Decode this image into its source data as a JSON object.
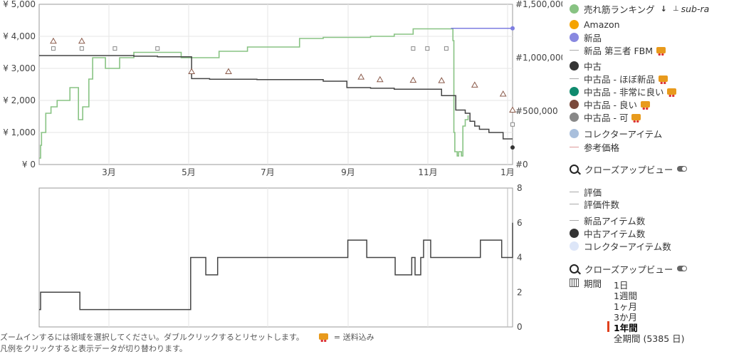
{
  "chart_data": [
    {
      "type": "line",
      "title": "",
      "x_ticks": [
        "3月",
        "5月",
        "7月",
        "9月",
        "11月",
        "1月"
      ],
      "y_left_ticks": [
        "¥ 0",
        "¥ 1,000",
        "¥ 2,000",
        "¥ 3,000",
        "¥ 4,000",
        "¥ 5,000"
      ],
      "y_left_lim": [
        0,
        5000
      ],
      "y_right_ticks": [
        "#0",
        "#500,000",
        "#1,000,000",
        "#1,500,000"
      ],
      "y_right_lim": [
        0,
        1500000
      ],
      "grid": true,
      "series": [
        {
          "name": "売れ筋ランキング",
          "axis": "right",
          "color": "#88c383",
          "points": [
            [
              0,
              60000
            ],
            [
              0.3,
              180000
            ],
            [
              0.5,
              300000
            ],
            [
              1.2,
              300000
            ],
            [
              1.4,
              480000
            ],
            [
              2.3,
              480000
            ],
            [
              2.5,
              540000
            ],
            [
              3.5,
              540000
            ],
            [
              3.8,
              600000
            ],
            [
              5.5,
              600000
            ],
            [
              6.5,
              720000
            ],
            [
              8,
              720000
            ],
            [
              8.3,
              420000
            ],
            [
              9,
              420000
            ],
            [
              9.2,
              540000
            ],
            [
              10,
              540000
            ],
            [
              10.5,
              800000
            ],
            [
              11,
              800000
            ],
            [
              11.3,
              1000000
            ],
            [
              13,
              1000000
            ],
            [
              14,
              900000
            ],
            [
              16,
              900000
            ],
            [
              17,
              1000000
            ],
            [
              18,
              1000000
            ],
            [
              20,
              1050000
            ],
            [
              25,
              1050000
            ],
            [
              30,
              1000000
            ],
            [
              37,
              1000000
            ],
            [
              38,
              1060000
            ],
            [
              42,
              1060000
            ],
            [
              44,
              1100000
            ],
            [
              50,
              1100000
            ],
            [
              55,
              1180000
            ],
            [
              60,
              1190000
            ],
            [
              70,
              1200000
            ],
            [
              75,
              1220000
            ],
            [
              79,
              1270000
            ],
            [
              87,
              1270000
            ],
            [
              87.4,
              1160000
            ],
            [
              87.6,
              300000
            ],
            [
              87.8,
              120000
            ],
            [
              88.3,
              80000
            ],
            [
              88.6,
              120000
            ],
            [
              89.2,
              80000
            ],
            [
              89.5,
              360000
            ],
            [
              90,
              420000
            ],
            [
              90.6,
              460000
            ]
          ]
        },
        {
          "name": "新品",
          "axis": "left",
          "color": "#7d7de0",
          "points": [
            [
              87,
              4250
            ],
            [
              100,
              4250
            ]
          ]
        },
        {
          "name": "新品 第三者 FBM",
          "axis": "left",
          "color": "#444444",
          "points": [
            [
              0,
              3400
            ],
            [
              20,
              3380
            ],
            [
              25,
              3360
            ],
            [
              32,
              3360
            ],
            [
              32.2,
              2680
            ],
            [
              36,
              2660
            ],
            [
              46,
              2650
            ],
            [
              60,
              2600
            ],
            [
              65,
              2400
            ],
            [
              70,
              2380
            ],
            [
              75,
              2350
            ],
            [
              85,
              2150
            ],
            [
              88,
              1700
            ],
            [
              90,
              1600
            ],
            [
              91,
              1350
            ],
            [
              92,
              1200
            ],
            [
              93,
              1100
            ],
            [
              95,
              1000
            ],
            [
              98,
              800
            ],
            [
              100,
              800
            ]
          ]
        },
        {
          "name": "中古品 - 良い",
          "axis": "left",
          "color": "#8a5a4a",
          "markers": [
            [
              3,
              3850
            ],
            [
              9,
              3850
            ],
            [
              32.2,
              2900
            ],
            [
              40,
              2900
            ],
            [
              68,
              2730
            ],
            [
              72,
              2650
            ],
            [
              79,
              2630
            ],
            [
              85,
              2620
            ],
            [
              92,
              2480
            ],
            [
              98,
              2200
            ],
            [
              100,
              1700
            ]
          ]
        },
        {
          "name": "中古品 - ほぼ新品",
          "axis": "left",
          "color": "#888888",
          "markers": [
            [
              3,
              3620
            ],
            [
              9,
              3620
            ],
            [
              16,
              3620
            ],
            [
              25,
              3620
            ],
            [
              79,
              3620
            ],
            [
              82,
              3620
            ],
            [
              86,
              3620
            ],
            [
              100,
              1250
            ]
          ]
        }
      ]
    },
    {
      "type": "line",
      "title": "",
      "y_ticks": [
        "0",
        "2",
        "4",
        "6",
        "8"
      ],
      "ylim": [
        0,
        8
      ],
      "series": [
        {
          "name": "中古アイテム数",
          "color": "#444444",
          "points": [
            [
              0,
              1
            ],
            [
              0.3,
              2
            ],
            [
              8.5,
              2
            ],
            [
              8.6,
              1
            ],
            [
              31.8,
              1
            ],
            [
              32,
              4
            ],
            [
              35,
              4
            ],
            [
              35.2,
              3
            ],
            [
              37.5,
              3
            ],
            [
              37.7,
              4
            ],
            [
              65,
              4
            ],
            [
              65.2,
              5
            ],
            [
              69,
              5
            ],
            [
              69.2,
              4
            ],
            [
              75,
              4
            ],
            [
              75.2,
              3
            ],
            [
              78.5,
              3
            ],
            [
              78.7,
              4
            ],
            [
              79.2,
              4
            ],
            [
              79.4,
              3
            ],
            [
              80.4,
              3
            ],
            [
              80.6,
              4
            ],
            [
              81,
              4
            ],
            [
              81.2,
              5
            ],
            [
              82.5,
              5
            ],
            [
              82.7,
              4
            ],
            [
              93,
              4
            ],
            [
              93.2,
              5
            ],
            [
              97.5,
              5
            ],
            [
              97.7,
              4
            ],
            [
              100,
              4
            ],
            [
              100,
              6
            ]
          ]
        }
      ]
    }
  ],
  "legend": {
    "sales_rank": "売れ筋ランキング",
    "sales_rank_extra": "sub-ra",
    "amazon": "Amazon",
    "new": "新品",
    "new_fbm": "新品 第三者 FBM",
    "used": "中古",
    "used_like_new": "中古品 - ほぼ新品",
    "used_very_good": "中古品 - 非常に良い",
    "used_good": "中古品 - 良い",
    "used_acceptable": "中古品 - 可",
    "collectible": "コレクターアイテム",
    "reference_price": "参考価格",
    "closeup_1": "クローズアップビュー",
    "rating": "評価",
    "rating_count": "評価件数",
    "new_offer_count": "新品アイテム数",
    "used_offer_count": "中古アイテム数",
    "collectible_count": "コレクターアイテム数",
    "closeup_2": "クローズアップビュー",
    "period_label": "期間",
    "colors": {
      "sales_rank": "#88c383",
      "amazon": "#f5a300",
      "new": "#8888e0",
      "used": "#333333",
      "used_very_good": "#0f8a6e",
      "used_good": "#7a4a3c",
      "used_acceptable": "#888888",
      "collectible": "#a9bfdc",
      "collectible_count": "#dde6f8"
    }
  },
  "ranges": [
    "1日",
    "1週間",
    "1ヶ月",
    "3か月",
    "1年間",
    "全期間 (5385 日)"
  ],
  "active_range": "1年間",
  "footer": {
    "zoom_hint": "ズームインするには領域を選択してください。ダブルクリックするとリセットします。",
    "shipping_note": "= 送料込み",
    "legend_hint": "凡例をクリックすると表示データが切り替わります。"
  }
}
